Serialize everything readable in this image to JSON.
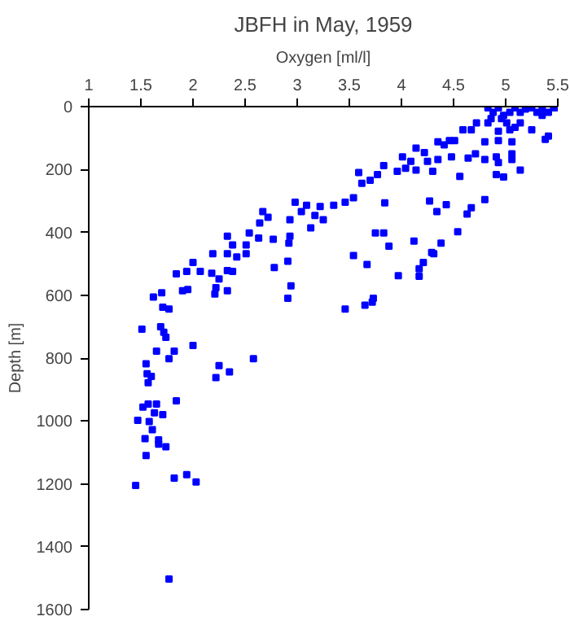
{
  "chart_data": {
    "type": "scatter",
    "title": "JBFH in May, 1959",
    "xlabel": "Oxygen [ml/l]",
    "ylabel": "Depth [m]",
    "x": [
      4.83,
      4.88,
      4.93,
      4.98,
      5.04,
      5.09,
      5.14,
      5.19,
      5.25,
      5.3,
      5.35,
      5.41,
      5.46,
      5.5,
      4.86,
      4.96,
      5.01,
      5.14,
      5.25,
      5.41,
      5.35,
      5.09,
      4.83,
      4.72,
      4.59,
      4.67,
      4.93,
      5.04,
      5.38,
      4.35,
      4.46,
      4.51,
      4.41,
      4.14,
      4.22,
      4.01,
      4.09,
      4.25,
      4.35,
      4.48,
      4.64,
      4.71,
      4.8,
      4.93,
      5.06,
      4.8,
      4.91,
      4.93,
      5.06,
      4.91,
      4.98,
      5.14,
      5.06,
      4.56,
      4.3,
      4.14,
      3.96,
      4.04,
      3.83,
      3.77,
      3.7,
      3.59,
      3.62,
      3.54,
      3.46,
      3.35,
      3.22,
      3.09,
      2.98,
      3.04,
      3.17,
      3.25,
      2.93,
      2.67,
      2.72,
      2.64,
      3.13,
      2.54,
      2.33,
      2.38,
      2.51,
      2.63,
      2.77,
      2.93,
      2.92,
      3.54,
      2.19,
      2.33,
      2.42,
      2.51,
      2.0,
      2.91,
      3.67,
      3.75,
      3.83,
      3.88,
      4.12,
      4.29,
      4.38,
      4.54,
      4.43,
      4.27,
      4.34,
      4.67,
      4.8,
      4.63,
      3.84,
      4.21,
      1.84,
      1.94,
      2.07,
      2.18,
      2.25,
      2.33,
      2.38,
      2.78,
      1.62,
      1.7,
      1.9,
      1.95,
      2.21,
      2.22,
      2.33,
      2.94,
      2.91,
      1.71,
      1.77,
      1.51,
      1.69,
      1.72,
      1.74,
      1.65,
      1.82,
      1.77,
      2.0,
      1.55,
      1.56,
      1.6,
      1.57,
      2.25,
      2.22,
      2.35,
      2.58,
      1.84,
      1.52,
      1.57,
      1.65,
      1.63,
      1.71,
      1.47,
      1.58,
      1.61,
      1.54,
      1.67,
      1.67,
      1.74,
      1.55,
      3.97,
      4.17,
      4.17,
      4.31,
      3.73,
      3.65,
      3.46,
      3.72,
      1.45,
      1.82,
      1.94,
      2.03,
      1.77
    ],
    "values": [
      4,
      18,
      4,
      28,
      18,
      4,
      18,
      8,
      4,
      18,
      8,
      18,
      4,
      4,
      38,
      38,
      52,
      52,
      74,
      94,
      28,
      66,
      52,
      52,
      74,
      74,
      78,
      74,
      104,
      112,
      108,
      108,
      122,
      132,
      146,
      160,
      174,
      174,
      168,
      160,
      164,
      150,
      112,
      108,
      112,
      168,
      160,
      178,
      168,
      216,
      224,
      202,
      150,
      222,
      206,
      202,
      206,
      196,
      188,
      216,
      234,
      210,
      244,
      290,
      304,
      314,
      318,
      314,
      304,
      334,
      346,
      360,
      360,
      334,
      352,
      370,
      386,
      402,
      412,
      440,
      440,
      418,
      422,
      412,
      434,
      474,
      468,
      468,
      478,
      468,
      496,
      492,
      502,
      402,
      402,
      444,
      428,
      464,
      434,
      398,
      312,
      300,
      334,
      322,
      296,
      342,
      306,
      496,
      532,
      524,
      524,
      530,
      548,
      522,
      524,
      512,
      606,
      592,
      586,
      582,
      596,
      576,
      586,
      570,
      610,
      638,
      644,
      708,
      700,
      718,
      734,
      778,
      778,
      802,
      760,
      818,
      850,
      858,
      878,
      824,
      862,
      844,
      802,
      936,
      956,
      946,
      946,
      974,
      980,
      998,
      1002,
      1028,
      1056,
      1060,
      1074,
      1082,
      1110,
      538,
      540,
      516,
      468,
      610,
      632,
      644,
      622,
      1205,
      1182,
      1171,
      1194,
      1503
    ],
    "color": "#0000ff",
    "marker": "square",
    "xlim": [
      1,
      5.5
    ],
    "xticks": [
      1,
      1.5,
      2,
      2.5,
      3,
      3.5,
      4,
      4.5,
      5,
      5.5
    ],
    "ylim": [
      1600,
      0
    ],
    "yticks": [
      0,
      200,
      400,
      600,
      800,
      1000,
      1200,
      1400,
      1600
    ]
  }
}
